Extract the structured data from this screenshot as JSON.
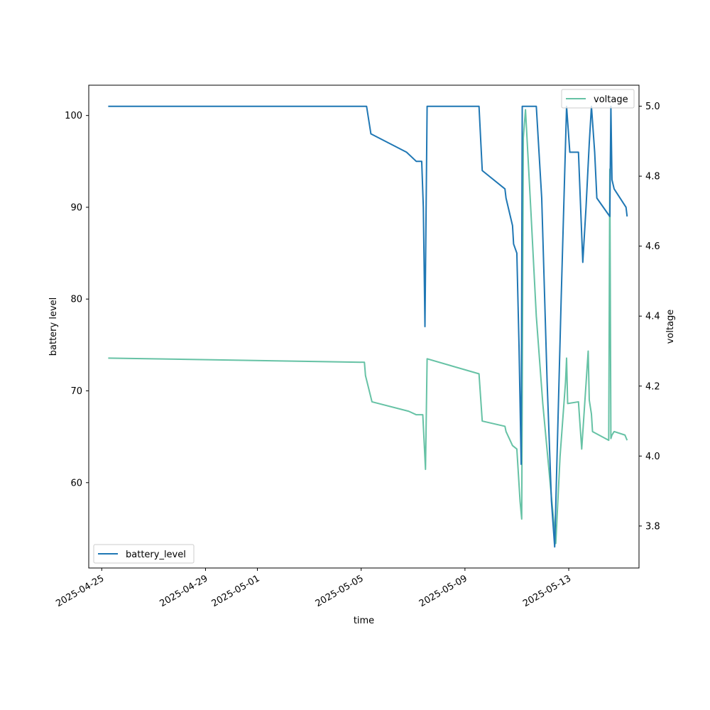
{
  "chart_data": {
    "type": "line",
    "title": "",
    "xlabel": "time",
    "ylabel": "battery level",
    "y2label": "voltage",
    "x_ticks": [
      "2025-04-25",
      "2025-04-29",
      "2025-05-01",
      "2025-05-05",
      "2025-05-09",
      "2025-05-13"
    ],
    "y_ticks": [
      60,
      70,
      80,
      90,
      100
    ],
    "y2_ticks": [
      3.8,
      4.0,
      4.2,
      4.4,
      4.6,
      4.8,
      5.0
    ],
    "xlim": [
      "2025-04-24T12:00",
      "2025-05-15T17:00"
    ],
    "ylim": [
      50.7,
      103.3
    ],
    "y2lim": [
      3.68,
      5.06
    ],
    "grid": false,
    "series": [
      {
        "name": "battery_level",
        "axis": "left",
        "color": "#1f77b4",
        "legend_position": "lower-left",
        "points": [
          [
            "2025-04-25T06:00",
            101
          ],
          [
            "2025-05-05T05:00",
            101
          ],
          [
            "2025-05-05T09:00",
            98
          ],
          [
            "2025-05-06T18:00",
            96
          ],
          [
            "2025-05-07T03:00",
            95
          ],
          [
            "2025-05-07T08:00",
            95
          ],
          [
            "2025-05-07T09:30",
            90
          ],
          [
            "2025-05-07T11:00",
            77
          ],
          [
            "2025-05-07T13:00",
            101
          ],
          [
            "2025-05-09T13:00",
            101
          ],
          [
            "2025-05-09T16:00",
            94
          ],
          [
            "2025-05-10T13:00",
            92
          ],
          [
            "2025-05-10T14:00",
            91
          ],
          [
            "2025-05-10T20:00",
            88
          ],
          [
            "2025-05-10T21:00",
            86
          ],
          [
            "2025-05-11T00:00",
            85
          ],
          [
            "2025-05-11T02:00",
            75
          ],
          [
            "2025-05-11T04:00",
            62
          ],
          [
            "2025-05-11T05:00",
            101
          ],
          [
            "2025-05-11T07:00",
            101
          ],
          [
            "2025-05-11T10:00",
            101
          ],
          [
            "2025-05-11T12:00",
            101
          ],
          [
            "2025-05-11T15:00",
            101
          ],
          [
            "2025-05-11T18:00",
            101
          ],
          [
            "2025-05-11T23:00",
            91
          ],
          [
            "2025-05-12T04:00",
            71
          ],
          [
            "2025-05-12T08:00",
            58
          ],
          [
            "2025-05-12T11:00",
            53
          ],
          [
            "2025-05-12T17:00",
            80
          ],
          [
            "2025-05-12T22:00",
            101
          ],
          [
            "2025-05-13T01:00",
            96
          ],
          [
            "2025-05-13T09:00",
            96
          ],
          [
            "2025-05-13T13:00",
            84
          ],
          [
            "2025-05-13T16:00",
            90
          ],
          [
            "2025-05-13T19:00",
            97
          ],
          [
            "2025-05-13T21:00",
            101
          ],
          [
            "2025-05-14T00:00",
            96
          ],
          [
            "2025-05-14T02:00",
            91
          ],
          [
            "2025-05-14T14:00",
            89
          ],
          [
            "2025-05-14T15:00",
            101
          ],
          [
            "2025-05-14T16:00",
            93
          ],
          [
            "2025-05-14T18:00",
            92
          ],
          [
            "2025-05-15T05:00",
            90
          ],
          [
            "2025-05-15T06:00",
            89
          ]
        ]
      },
      {
        "name": "voltage",
        "axis": "right",
        "color": "#66c2a5",
        "legend_position": "upper-right",
        "points": [
          [
            "2025-04-25T06:00",
            4.28
          ],
          [
            "2025-05-05T03:00",
            4.268
          ],
          [
            "2025-05-05T04:00",
            4.23
          ],
          [
            "2025-05-05T10:00",
            4.155
          ],
          [
            "2025-05-06T20:00",
            4.128
          ],
          [
            "2025-05-07T03:00",
            4.118
          ],
          [
            "2025-05-07T09:00",
            4.118
          ],
          [
            "2025-05-07T11:30",
            3.962
          ],
          [
            "2025-05-07T13:00",
            4.278
          ],
          [
            "2025-05-09T13:00",
            4.235
          ],
          [
            "2025-05-09T16:00",
            4.1
          ],
          [
            "2025-05-10T13:00",
            4.085
          ],
          [
            "2025-05-10T14:00",
            4.07
          ],
          [
            "2025-05-10T20:00",
            4.03
          ],
          [
            "2025-05-11T00:00",
            4.02
          ],
          [
            "2025-05-11T01:00",
            3.97
          ],
          [
            "2025-05-11T03:00",
            3.87
          ],
          [
            "2025-05-11T04:30",
            3.82
          ],
          [
            "2025-05-11T06:00",
            4.91
          ],
          [
            "2025-05-11T08:00",
            4.99
          ],
          [
            "2025-05-11T13:00",
            4.7
          ],
          [
            "2025-05-11T18:00",
            4.4
          ],
          [
            "2025-05-12T00:00",
            4.15
          ],
          [
            "2025-05-12T06:00",
            3.95
          ],
          [
            "2025-05-12T12:00",
            3.75
          ],
          [
            "2025-05-12T16:00",
            4.0
          ],
          [
            "2025-05-12T21:00",
            4.21
          ],
          [
            "2025-05-12T22:00",
            4.28
          ],
          [
            "2025-05-12T23:00",
            4.15
          ],
          [
            "2025-05-13T09:00",
            4.155
          ],
          [
            "2025-05-13T12:00",
            4.02
          ],
          [
            "2025-05-13T18:00",
            4.3
          ],
          [
            "2025-05-13T19:00",
            4.16
          ],
          [
            "2025-05-13T21:00",
            4.12
          ],
          [
            "2025-05-13T22:00",
            4.07
          ],
          [
            "2025-05-14T13:00",
            4.045
          ],
          [
            "2025-05-14T14:00",
            4.82
          ],
          [
            "2025-05-14T15:00",
            4.05
          ],
          [
            "2025-05-14T16:00",
            4.06
          ],
          [
            "2025-05-14T18:00",
            4.07
          ],
          [
            "2025-05-15T04:00",
            4.06
          ],
          [
            "2025-05-15T06:00",
            4.045
          ]
        ]
      }
    ]
  }
}
